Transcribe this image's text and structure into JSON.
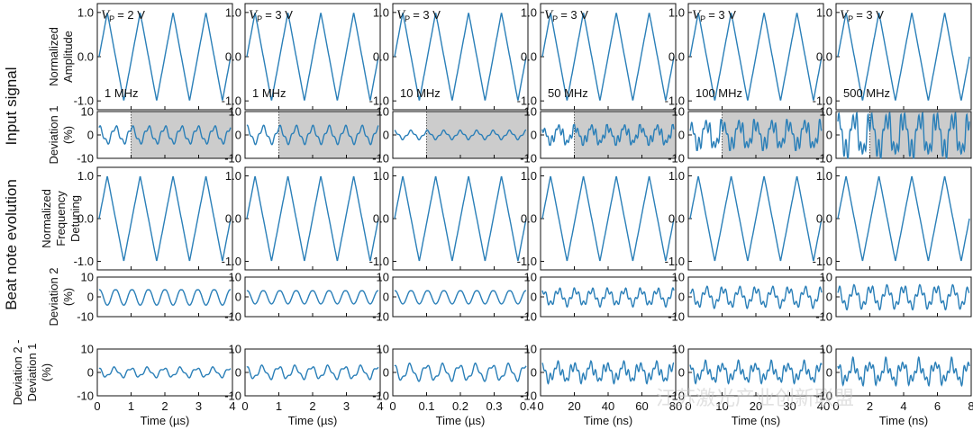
{
  "colors": {
    "trace": "#2a7fb8",
    "shade": "#cccccc",
    "axis": "#111111",
    "watermark": "#c9c9c9"
  },
  "row_titles": [
    "Input signal",
    "Beat note evolution"
  ],
  "y_labels": {
    "row1": [
      "Normalized",
      "Amplitude"
    ],
    "row2": [
      "Deviation 1",
      "(%)"
    ],
    "row3": [
      "Normalized",
      "Frequency",
      "Detuning"
    ],
    "row4": [
      "Deviation 2",
      "(%)"
    ],
    "row5": [
      "Deviation 2 -",
      "Deviation 1",
      "(%)"
    ]
  },
  "columns": [
    {
      "vp_label": "= 2 V",
      "freq_label": "1 MHz",
      "x_label": "Time (µs)",
      "x_ticks": [
        "0",
        "1",
        "2",
        "3",
        "4"
      ],
      "cycles": 4,
      "shade_start": 0.25
    },
    {
      "vp_label": "= 3 V",
      "freq_label": "1 MHz",
      "x_label": "Time (µs)",
      "x_ticks": [
        "0",
        "1",
        "2",
        "3",
        "4"
      ],
      "cycles": 4,
      "shade_start": 0.25
    },
    {
      "vp_label": "= 3 V",
      "freq_label": "10 MHz",
      "x_label": "Time (µs)",
      "x_ticks": [
        "0",
        "0.1",
        "0.2",
        "0.3",
        "0.4"
      ],
      "cycles": 4,
      "shade_start": 0.25
    },
    {
      "vp_label": "= 3 V",
      "freq_label": "50 MHz",
      "x_label": "Time (ns)",
      "x_ticks": [
        "0",
        "20",
        "40",
        "60",
        "80"
      ],
      "cycles": 4,
      "shade_start": 0.25
    },
    {
      "vp_label": "= 3 V",
      "freq_label": "100 MHz",
      "x_label": "Time (ns)",
      "x_ticks": [
        "0",
        "10",
        "20",
        "30",
        "40"
      ],
      "cycles": 4,
      "shade_start": 0.25
    },
    {
      "vp_label": "= 3 V",
      "freq_label": "500 MHz",
      "x_label": "Time (ns)",
      "x_ticks": [
        "0",
        "2",
        "4",
        "6",
        "8"
      ],
      "cycles": 4,
      "shade_start": 0.25
    }
  ],
  "vp_symbol": "V",
  "vp_subscript": "P",
  "watermark": "江苏激光产业创新联盟",
  "chart_data": {
    "type": "line",
    "rows": [
      {
        "name": "Normalized Amplitude",
        "ylim": [
          -1.2,
          1.2
        ],
        "yticks": [
          "1.0",
          "0.0",
          "-1.0"
        ],
        "ytick_values": [
          1.0,
          0.0,
          -1.0
        ],
        "waveform": "triangle",
        "amplitude": 1.0
      },
      {
        "name": "Deviation 1 (%)",
        "ylim": [
          -10,
          10
        ],
        "yticks": [
          "10",
          "0",
          "-10"
        ],
        "ytick_values": [
          10,
          0,
          -10
        ],
        "amplitude_per_column": [
          4,
          4,
          2,
          4,
          6,
          9
        ],
        "shaded_region": "from 1/4 of time window to end"
      },
      {
        "name": "Normalized Frequency Detuning",
        "ylim": [
          -1.2,
          1.2
        ],
        "yticks": [
          "1.0",
          "0.0",
          "-1.0"
        ],
        "ytick_values": [
          1.0,
          0.0,
          -1.0
        ],
        "waveform": "triangle",
        "amplitude": 1.0
      },
      {
        "name": "Deviation 2 (%)",
        "ylim": [
          -10,
          10
        ],
        "yticks": [
          "10",
          "0",
          "-10"
        ],
        "ytick_values": [
          10,
          0,
          -10
        ],
        "amplitude_per_column": [
          7,
          6,
          6,
          6,
          7,
          8
        ]
      },
      {
        "name": "Deviation 2 - Deviation 1 (%)",
        "ylim": [
          -10,
          10
        ],
        "yticks": [
          "10",
          "0",
          "-10"
        ],
        "ytick_values": [
          10,
          0,
          -10
        ],
        "amplitude_per_column": [
          3,
          4,
          5,
          5,
          5,
          6
        ]
      }
    ],
    "cycles_per_window": 4
  }
}
